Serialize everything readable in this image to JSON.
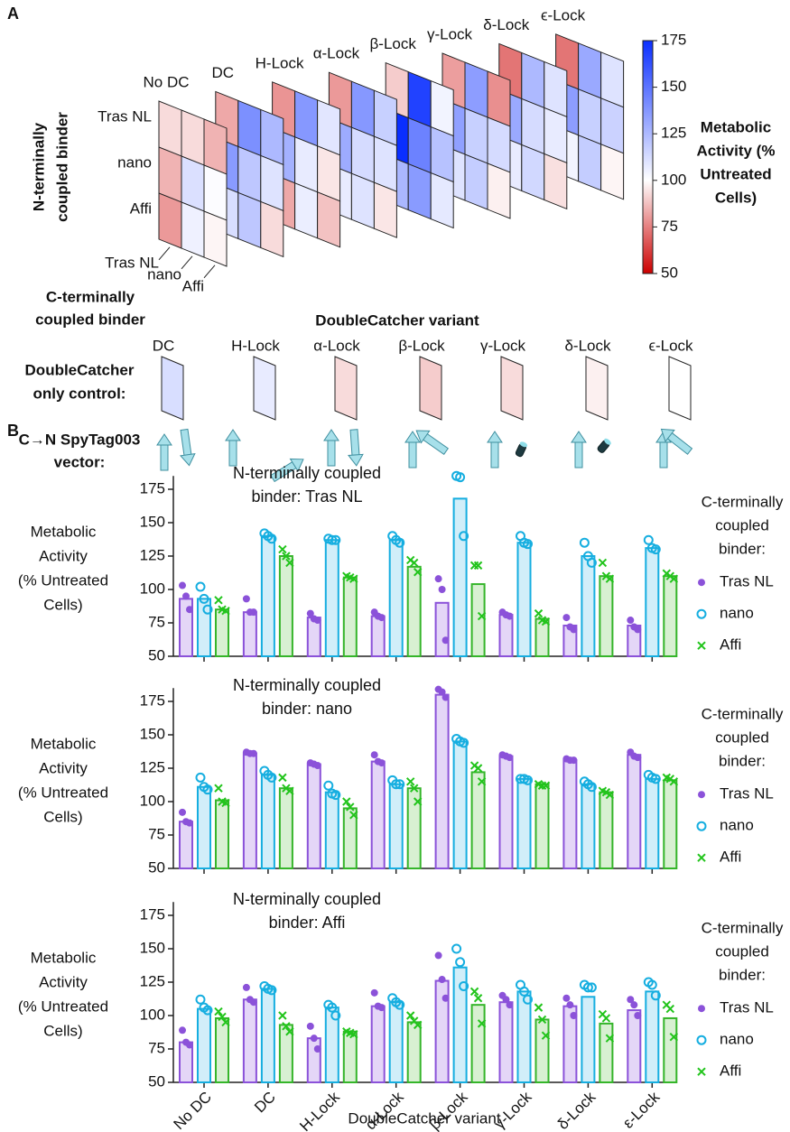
{
  "chart_data": [
    {
      "type": "heatmap",
      "panel_label": "A",
      "variants": [
        "No DC",
        "DC",
        "H-Lock",
        "α-Lock",
        "β-Lock",
        "γ-Lock",
        "δ-Lock",
        "ϵ-Lock"
      ],
      "row_labels": [
        "Tras NL",
        "nano",
        "Affi"
      ],
      "col_labels": [
        "Tras NL",
        "nano",
        "Affi"
      ],
      "row_axis_label": [
        "N-terminally",
        "coupled binder"
      ],
      "col_axis_label": [
        "C-terminally",
        "coupled binder"
      ],
      "matrices": [
        [
          [
            93,
            93,
            85
          ],
          [
            85,
            111,
            101
          ],
          [
            80,
            105,
            98
          ]
        ],
        [
          [
            83,
            140,
            125
          ],
          [
            136,
            120,
            110
          ],
          [
            112,
            120,
            93
          ]
        ],
        [
          [
            79,
            137,
            109
          ],
          [
            128,
            107,
            95
          ],
          [
            83,
            106,
            88
          ]
        ],
        [
          [
            80,
            137,
            117
          ],
          [
            130,
            113,
            110
          ],
          [
            107,
            110,
            95
          ]
        ],
        [
          [
            90,
            168,
            104
          ],
          [
            180,
            145,
            122
          ],
          [
            126,
            136,
            108
          ]
        ],
        [
          [
            81,
            135,
            78
          ],
          [
            134,
            117,
            113
          ],
          [
            110,
            118,
            97
          ]
        ],
        [
          [
            73,
            125,
            110
          ],
          [
            131,
            113,
            107
          ],
          [
            107,
            114,
            94
          ]
        ],
        [
          [
            73,
            131,
            110
          ],
          [
            135,
            117,
            116
          ],
          [
            104,
            118,
            98
          ]
        ]
      ],
      "colorbar": {
        "label": [
          "Metabolic",
          "Activity (%",
          "Untreated",
          "Cells)"
        ],
        "lim": [
          50,
          175
        ],
        "ticks": [
          50,
          75,
          100,
          125,
          150,
          175
        ],
        "stops": [
          {
            "value": 50,
            "color": "#cc0000"
          },
          {
            "value": 100,
            "color": "#ffffff"
          },
          {
            "value": 175,
            "color": "#0a2eff"
          }
        ]
      }
    },
    {
      "type": "control-strip",
      "title": "DoubleCatcher variant",
      "row_label": [
        "DoubleCatcher",
        "only control:"
      ],
      "vector_label": [
        "C→N SpyTag003",
        "vector:"
      ],
      "categories": [
        "DC",
        "H-Lock",
        "α-Lock",
        "β-Lock",
        "γ-Lock",
        "δ-Lock",
        "ϵ-Lock"
      ],
      "values": [
        112,
        107,
        93,
        90,
        93,
        97,
        100
      ]
    },
    {
      "type": "bar",
      "panel_label": "B",
      "title": [
        "N-terminally coupled",
        "binder: Tras NL"
      ],
      "ylabel": [
        "Metabolic",
        "Activity",
        "(% Untreated",
        "Cells)"
      ],
      "ylim": [
        50,
        185
      ],
      "yticks": [
        50,
        75,
        100,
        125,
        150,
        175
      ],
      "legend_title": [
        "C-terminally",
        "coupled",
        "binder:"
      ],
      "series": [
        {
          "name": "Tras NL",
          "color": "#8b52d9",
          "fill": "#e4d6f7",
          "marker": "filled-circle",
          "values": [
            93,
            83,
            79,
            80,
            90,
            81,
            73,
            73
          ],
          "points": [
            [
              103,
              95,
              85
            ],
            [
              93,
              83,
              83
            ],
            [
              82,
              78,
              77
            ],
            [
              83,
              80,
              79
            ],
            [
              108,
              100,
              62
            ],
            [
              83,
              81,
              80
            ],
            [
              79,
              72,
              70
            ],
            [
              77,
              72,
              70
            ]
          ]
        },
        {
          "name": "nano",
          "color": "#16aee0",
          "fill": "#d1eef9",
          "marker": "open-circle",
          "values": [
            93,
            140,
            137,
            137,
            168,
            135,
            125,
            131
          ],
          "points": [
            [
              102,
              93,
              85
            ],
            [
              142,
              140,
              138
            ],
            [
              138,
              137,
              137
            ],
            [
              140,
              137,
              135
            ],
            [
              185,
              184,
              140
            ],
            [
              140,
              135,
              134
            ],
            [
              135,
              125,
              120
            ],
            [
              137,
              131,
              130
            ]
          ]
        },
        {
          "name": "Affi",
          "color": "#35b52a",
          "fill": "#d8f0d2",
          "marker": "x",
          "values": [
            85,
            125,
            109,
            117,
            104,
            78,
            110,
            110
          ],
          "points": [
            [
              92,
              85,
              84
            ],
            [
              130,
              125,
              120
            ],
            [
              110,
              109,
              108
            ],
            [
              122,
              120,
              113
            ],
            [
              118,
              118,
              80
            ],
            [
              82,
              77,
              76
            ],
            [
              120,
              110,
              108
            ],
            [
              112,
              110,
              108
            ]
          ]
        }
      ]
    },
    {
      "type": "bar",
      "title": [
        "N-terminally coupled",
        "binder: nano"
      ],
      "ylabel": [
        "Metabolic",
        "Activity",
        "(% Untreated",
        "Cells)"
      ],
      "ylim": [
        50,
        185
      ],
      "yticks": [
        50,
        75,
        100,
        125,
        150,
        175
      ],
      "legend_title": [
        "C-terminally",
        "coupled",
        "binder:"
      ],
      "series": [
        {
          "name": "Tras NL",
          "color": "#8b52d9",
          "fill": "#e4d6f7",
          "marker": "filled-circle",
          "values": [
            85,
            136,
            128,
            130,
            180,
            134,
            131,
            135
          ],
          "points": [
            [
              92,
              85,
              84
            ],
            [
              137,
              136,
              136
            ],
            [
              129,
              128,
              127
            ],
            [
              135,
              130,
              129
            ],
            [
              184,
              182,
              178
            ],
            [
              135,
              134,
              133
            ],
            [
              132,
              131,
              131
            ],
            [
              137,
              134,
              133
            ]
          ]
        },
        {
          "name": "nano",
          "color": "#16aee0",
          "fill": "#d1eef9",
          "marker": "open-circle",
          "values": [
            111,
            120,
            107,
            113,
            145,
            117,
            113,
            117
          ],
          "points": [
            [
              118,
              111,
              109
            ],
            [
              123,
              120,
              118
            ],
            [
              112,
              106,
              105
            ],
            [
              116,
              113,
              113
            ],
            [
              147,
              145,
              144
            ],
            [
              117,
              117,
              116
            ],
            [
              115,
              113,
              111
            ],
            [
              120,
              118,
              117
            ]
          ]
        },
        {
          "name": "Affi",
          "color": "#35b52a",
          "fill": "#d8f0d2",
          "marker": "x",
          "values": [
            101,
            110,
            95,
            110,
            122,
            113,
            107,
            116
          ],
          "points": [
            [
              110,
              100,
              99
            ],
            [
              118,
              110,
              108
            ],
            [
              100,
              96,
              90
            ],
            [
              115,
              110,
              100
            ],
            [
              127,
              125,
              115
            ],
            [
              113,
              112,
              112
            ],
            [
              108,
              107,
              105
            ],
            [
              118,
              117,
              115
            ]
          ]
        }
      ]
    },
    {
      "type": "bar",
      "title": [
        "N-terminally coupled",
        "binder: Affi"
      ],
      "ylabel": [
        "Metabolic",
        "Activity",
        "(% Untreated",
        "Cells)"
      ],
      "ylim": [
        50,
        185
      ],
      "yticks": [
        50,
        75,
        100,
        125,
        150,
        175
      ],
      "legend_title": [
        "C-terminally",
        "coupled",
        "binder:"
      ],
      "categories": [
        "No DC",
        "DC",
        "H-Lock",
        "α-Lock",
        "β-Lock",
        "γ-Lock",
        "δ-Lock",
        "ε-Lock"
      ],
      "xlabel": "DoubleCatcher variant",
      "series": [
        {
          "name": "Tras NL",
          "color": "#8b52d9",
          "fill": "#e4d6f7",
          "marker": "filled-circle",
          "values": [
            80,
            112,
            83,
            107,
            126,
            110,
            107,
            104
          ],
          "points": [
            [
              89,
              80,
              78
            ],
            [
              121,
              112,
              110
            ],
            [
              92,
              83,
              75
            ],
            [
              117,
              107,
              106
            ],
            [
              145,
              127,
              113
            ],
            [
              115,
              112,
              108
            ],
            [
              113,
              108,
              100
            ],
            [
              112,
              108,
              100
            ]
          ]
        },
        {
          "name": "nano",
          "color": "#16aee0",
          "fill": "#d1eef9",
          "marker": "open-circle",
          "values": [
            105,
            120,
            106,
            110,
            136,
            118,
            114,
            118
          ],
          "points": [
            [
              112,
              106,
              104
            ],
            [
              122,
              120,
              119
            ],
            [
              108,
              106,
              100
            ],
            [
              113,
              110,
              108
            ],
            [
              150,
              140,
              122
            ],
            [
              123,
              118,
              112
            ],
            [
              123,
              121,
              121
            ],
            [
              125,
              123,
              115
            ]
          ]
        },
        {
          "name": "Affi",
          "color": "#35b52a",
          "fill": "#d8f0d2",
          "marker": "x",
          "values": [
            98,
            93,
            88,
            95,
            108,
            97,
            94,
            98
          ],
          "points": [
            [
              103,
              99,
              95
            ],
            [
              100,
              92,
              88
            ],
            [
              88,
              87,
              86
            ],
            [
              100,
              96,
              93
            ],
            [
              118,
              113,
              94
            ],
            [
              106,
              97,
              85
            ],
            [
              101,
              98,
              83
            ],
            [
              108,
              105,
              84
            ]
          ]
        }
      ]
    }
  ]
}
